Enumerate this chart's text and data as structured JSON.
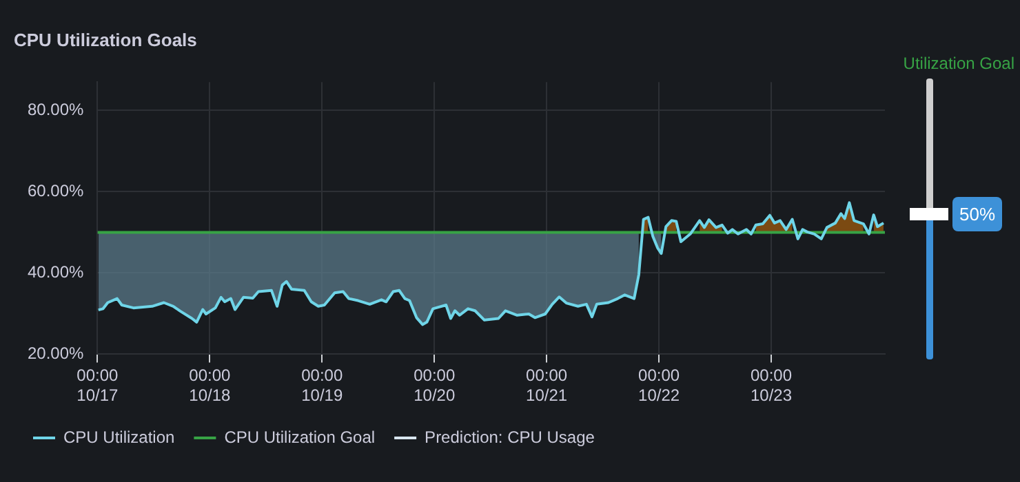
{
  "chart_data": {
    "type": "line",
    "title": "CPU Utilization Goals",
    "annotations": [
      "Utilization Goal",
      "50%"
    ],
    "xlim": [
      "--10-17T00:00",
      "--10-24T00:18"
    ],
    "ylim": [
      20,
      87
    ],
    "xticks": [
      {
        "value": "--10-17T00:00",
        "label": "00:00\n10/17"
      },
      {
        "value": "--10-18T00:00",
        "label": "00:00\n10/18"
      },
      {
        "value": "--10-19T00:00",
        "label": "00:00\n10/19"
      },
      {
        "value": "--10-20T00:00",
        "label": "00:00\n10/20"
      },
      {
        "value": "--10-21T00:00",
        "label": "00:00\n10/21"
      },
      {
        "value": "--10-22T00:00",
        "label": "00:00\n10/22"
      },
      {
        "value": "--10-23T00:00",
        "label": "00:00\n10/23"
      }
    ],
    "yticks": [
      {
        "value": 20,
        "label": "20.00%"
      },
      {
        "value": 40,
        "label": "40.00%"
      },
      {
        "value": 60,
        "label": "60.00%"
      },
      {
        "value": 80,
        "label": "80.00%"
      }
    ],
    "grid": true,
    "legend": "bottom left",
    "marker": "none",
    "series": [
      {
        "name": "CPU Utilization",
        "type": "line",
        "color": "#6fd5e8",
        "line_style": "solid",
        "x": [
          "--10-17T00:12",
          "--10-17T01:12",
          "--10-17T02:12",
          "--10-17T04:12",
          "--10-17T05:12",
          "--10-17T07:42",
          "--10-17T11:42",
          "--10-17T14:12",
          "--10-17T16:12",
          "--10-17T17:42",
          "--10-17T20:12",
          "--10-17T21:12",
          "--10-17T22:30",
          "--10-17T23:12",
          "--10-18T01:12",
          "--10-18T02:24",
          "--10-18T03:12",
          "--10-18T04:30",
          "--10-18T05:24",
          "--10-18T07:12",
          "--10-18T09:12",
          "--10-18T10:24",
          "--10-18T13:12",
          "--10-18T14:24",
          "--10-18T15:30",
          "--10-18T16:24",
          "--10-18T17:30",
          "--10-18T20:12",
          "--10-18T21:42",
          "--10-18T23:12",
          "--10-19T00:30",
          "--10-19T02:42",
          "--10-19T04:30",
          "--10-19T05:42",
          "--10-19T07:42",
          "--10-19T10:12",
          "--10-19T12:42",
          "--10-19T13:42",
          "--10-19T15:12",
          "--10-19T16:30",
          "--10-19T17:42",
          "--10-19T18:42",
          "--10-19T20:12",
          "--10-19T21:30",
          "--10-19T22:24",
          "--10-19T23:42",
          "--10-20T02:30",
          "--10-20T03:30",
          "--10-20T04:24",
          "--10-20T05:24",
          "--10-20T07:12",
          "--10-20T08:42",
          "--10-20T10:42",
          "--10-20T13:42",
          "--10-20T15:12",
          "--10-20T17:42",
          "--10-20T20:12",
          "--10-20T21:30",
          "--10-20T23:42",
          "--10-21T01:12",
          "--10-21T02:42",
          "--10-21T04:12",
          "--10-21T06:42",
          "--10-21T08:30",
          "--10-21T09:42",
          "--10-21T10:42",
          "--10-21T13:12",
          "--10-21T15:12",
          "--10-21T16:42",
          "--10-21T18:42",
          "--10-21T19:42",
          "--10-21T20:42",
          "--10-21T21:42",
          "--10-21T22:42",
          "--10-21T23:42",
          "--10-22T00:30",
          "--10-22T01:30",
          "--10-22T02:42",
          "--10-22T03:42",
          "--10-22T04:42",
          "--10-22T06:42",
          "--10-22T08:42",
          "--10-22T09:42",
          "--10-22T10:42",
          "--10-22T12:12",
          "--10-22T13:30",
          "--10-22T14:42",
          "--10-22T15:42",
          "--10-22T16:54",
          "--10-22T18:42",
          "--10-22T19:42",
          "--10-22T20:42",
          "--10-22T22:12",
          "--10-22T23:42",
          "--10-23T00:42",
          "--10-23T01:54",
          "--10-23T03:12",
          "--10-23T04:30",
          "--10-23T05:42",
          "--10-23T06:42",
          "--10-23T07:42",
          "--10-23T09:12",
          "--10-23T10:42",
          "--10-23T11:54",
          "--10-23T13:42",
          "--10-23T14:54",
          "--10-23T15:42",
          "--10-23T16:42",
          "--10-23T17:42",
          "--10-23T19:42",
          "--10-23T20:54",
          "--10-23T21:54",
          "--10-23T22:42",
          "--10-24T00:00"
        ],
        "values": [
          30.9,
          31.2,
          32.7,
          33.7,
          32.1,
          31.4,
          31.8,
          32.7,
          31.8,
          30.6,
          28.8,
          27.9,
          31,
          29.9,
          31.4,
          34,
          32.9,
          33.7,
          31,
          34,
          33.8,
          35.4,
          35.7,
          31.8,
          37,
          37.9,
          36,
          35.7,
          32.9,
          31.8,
          32.1,
          35.1,
          35.4,
          33.7,
          33.2,
          32.3,
          33.4,
          32.9,
          35.4,
          35.7,
          33.7,
          33.2,
          29,
          27.3,
          27.9,
          31.2,
          32.1,
          28.8,
          30.7,
          29.6,
          31.2,
          30.7,
          28.4,
          28.8,
          30.7,
          29.6,
          29.9,
          29,
          29.9,
          32.3,
          34.1,
          32.6,
          31.8,
          32.3,
          29.2,
          32.3,
          32.7,
          33.7,
          34.6,
          33.7,
          39.6,
          53.2,
          53.7,
          49,
          46.2,
          44.8,
          51.4,
          52.9,
          52.7,
          47.7,
          49.6,
          52.9,
          51.2,
          53.1,
          51.2,
          51.8,
          49.8,
          50.7,
          49.6,
          50.7,
          49.6,
          51.8,
          52.1,
          54.2,
          52.3,
          52.9,
          50.7,
          53.2,
          48.4,
          50.7,
          50.1,
          49.6,
          48.4,
          51.2,
          52.3,
          54.6,
          53.4,
          57.3,
          52.9,
          52.1,
          49.6,
          54.3,
          51.4,
          52.3
        ],
        "lower": [
          30.9,
          31.2,
          32.7,
          33.7,
          32.1,
          31.4,
          31.8,
          32.7,
          31.8,
          30.6,
          28.8,
          27.9,
          31,
          29.9,
          31.4,
          34,
          32.9,
          33.7,
          31,
          34,
          33.8,
          35.4,
          35.7,
          31.8,
          37,
          37.9,
          36,
          35.7,
          32.9,
          31.8,
          32.1,
          35.1,
          35.4,
          33.7,
          33.2,
          32.3,
          33.4,
          32.9,
          35.4,
          35.7,
          33.7,
          33.2,
          29,
          27.3,
          27.9,
          31.2,
          32.1,
          28.8,
          30.7,
          29.6,
          31.2,
          30.7,
          28.4,
          28.8,
          30.7,
          29.6,
          29.9,
          29,
          29.9,
          32.3,
          34.1,
          32.6,
          31.8,
          32.3,
          29.2,
          32.3,
          32.7,
          33.7,
          34.6,
          33.7,
          39.6,
          null,
          null,
          49,
          46.2,
          44.8,
          null,
          null,
          null,
          null,
          null,
          null,
          null,
          null,
          null,
          null,
          null,
          null,
          null,
          null,
          null,
          null,
          null,
          null,
          null,
          null,
          null,
          null,
          null,
          null,
          null,
          null,
          null,
          null,
          null,
          null,
          null,
          null,
          null,
          null,
          null,
          null,
          null,
          null
        ],
        "upper": [
          50,
          50,
          50,
          50,
          50,
          50,
          50,
          50,
          50,
          50,
          50,
          50,
          50,
          50,
          50,
          50,
          50,
          50,
          50,
          50,
          50,
          50,
          50,
          50,
          50,
          50,
          50,
          50,
          50,
          50,
          50,
          50,
          50,
          50,
          50,
          50,
          50,
          50,
          50,
          50,
          50,
          50,
          50,
          50,
          50,
          50,
          50,
          50,
          50,
          50,
          50,
          50,
          50,
          50,
          50,
          50,
          50,
          50,
          50,
          50,
          50,
          50,
          50,
          50,
          50,
          50,
          50,
          50,
          50,
          50,
          50,
          null,
          null,
          50,
          50,
          50,
          null,
          null,
          null,
          null,
          null,
          null,
          null,
          null,
          null,
          null,
          null,
          null,
          null,
          null,
          null,
          null,
          null,
          null,
          null,
          null,
          null,
          null,
          null,
          null,
          null,
          null,
          null,
          null,
          null,
          null,
          null,
          null,
          null,
          null,
          null,
          null,
          null,
          null
        ]
      },
      {
        "name": "CPU Utilization Goal",
        "type": "line",
        "color": "#37a345",
        "line_style": "solid",
        "x": [
          "--10-17T00:00",
          "--10-17T00:12",
          "--10-17T01:12",
          "--10-17T02:12",
          "--10-17T04:12",
          "--10-17T05:12",
          "--10-17T07:42",
          "--10-17T11:42",
          "--10-17T14:12",
          "--10-17T16:12",
          "--10-17T17:42",
          "--10-17T20:12",
          "--10-17T21:12",
          "--10-17T22:30",
          "--10-17T23:12",
          "--10-18T01:12",
          "--10-18T02:24",
          "--10-18T03:12",
          "--10-18T04:30",
          "--10-18T05:24",
          "--10-18T07:12",
          "--10-18T09:12",
          "--10-18T10:24",
          "--10-18T13:12",
          "--10-18T14:24",
          "--10-18T15:30",
          "--10-18T16:24",
          "--10-18T17:30",
          "--10-18T20:12",
          "--10-18T21:42",
          "--10-18T23:12",
          "--10-19T00:30",
          "--10-19T02:42",
          "--10-19T04:30",
          "--10-19T05:42",
          "--10-19T07:42",
          "--10-19T10:12",
          "--10-19T12:42",
          "--10-19T13:42",
          "--10-19T15:12",
          "--10-19T16:30",
          "--10-19T17:42",
          "--10-19T18:42",
          "--10-19T20:12",
          "--10-19T21:30",
          "--10-19T22:24",
          "--10-19T23:42",
          "--10-20T02:30",
          "--10-20T03:30",
          "--10-20T04:24",
          "--10-20T05:24",
          "--10-20T07:12",
          "--10-20T08:42",
          "--10-20T10:42",
          "--10-20T13:42",
          "--10-20T15:12",
          "--10-20T17:42",
          "--10-20T20:12",
          "--10-20T21:30",
          "--10-20T23:42",
          "--10-21T01:12",
          "--10-21T02:42",
          "--10-21T04:12",
          "--10-21T06:42",
          "--10-21T08:30",
          "--10-21T09:42",
          "--10-21T10:42",
          "--10-21T13:12",
          "--10-21T15:12",
          "--10-21T16:42",
          "--10-21T18:42",
          "--10-21T19:42",
          "--10-21T20:42",
          "--10-21T21:42",
          "--10-21T22:42",
          "--10-21T23:42",
          "--10-22T00:30",
          "--10-22T01:30",
          "--10-22T02:42",
          "--10-22T03:42",
          "--10-22T04:42",
          "--10-22T06:42",
          "--10-22T08:42",
          "--10-22T09:42",
          "--10-22T10:42",
          "--10-22T12:12",
          "--10-22T13:30",
          "--10-22T14:42",
          "--10-22T15:42",
          "--10-22T16:54",
          "--10-22T18:42",
          "--10-22T19:42",
          "--10-22T20:42",
          "--10-22T22:12",
          "--10-22T23:42",
          "--10-23T00:42",
          "--10-23T01:54",
          "--10-23T03:12",
          "--10-23T04:30",
          "--10-23T05:42",
          "--10-23T06:42",
          "--10-23T07:42",
          "--10-23T09:12",
          "--10-23T10:42",
          "--10-23T11:54",
          "--10-23T13:42",
          "--10-23T14:54",
          "--10-23T15:42",
          "--10-23T16:42",
          "--10-23T17:42",
          "--10-23T19:42",
          "--10-23T20:54",
          "--10-23T21:54",
          "--10-23T22:42",
          "--10-24T00:00",
          "--10-24T00:18"
        ],
        "values": [
          50,
          50,
          50,
          50,
          50,
          50,
          50,
          50,
          50,
          50,
          50,
          50,
          50,
          50,
          50,
          50,
          50,
          50,
          50,
          50,
          50,
          50,
          50,
          50,
          50,
          50,
          50,
          50,
          50,
          50,
          50,
          50,
          50,
          50,
          50,
          50,
          50,
          50,
          50,
          50,
          50,
          50,
          50,
          50,
          50,
          50,
          50,
          50,
          50,
          50,
          50,
          50,
          50,
          50,
          50,
          50,
          50,
          50,
          50,
          50,
          50,
          50,
          50,
          50,
          50,
          50,
          50,
          50,
          50,
          50,
          50,
          50,
          50,
          50,
          50,
          50,
          50,
          50,
          50,
          50,
          50,
          50,
          50,
          50,
          50,
          50,
          50,
          50,
          50,
          50,
          50,
          50,
          50,
          50,
          50,
          50,
          50,
          50,
          50,
          50,
          50,
          50,
          50,
          50,
          50,
          50,
          50,
          50,
          50,
          50,
          50,
          50,
          50,
          50,
          50,
          50
        ],
        "lower": [
          null,
          null,
          null,
          null,
          null,
          null,
          null,
          null,
          null,
          null,
          null,
          null,
          null,
          null,
          null,
          null,
          null,
          null,
          null,
          null,
          null,
          null,
          null,
          null,
          null,
          null,
          null,
          null,
          null,
          null,
          null,
          null,
          null,
          null,
          null,
          null,
          null,
          null,
          null,
          null,
          null,
          null,
          null,
          null,
          null,
          null,
          null,
          null,
          null,
          null,
          null,
          null,
          null,
          null,
          null,
          null,
          null,
          null,
          null,
          null,
          null,
          null,
          null,
          null,
          null,
          null,
          null,
          null,
          null,
          null,
          null,
          null,
          50,
          50,
          null,
          null,
          null,
          50,
          50,
          50,
          null,
          null,
          50,
          50,
          50,
          50,
          50,
          null,
          null,
          null,
          null,
          null,
          50,
          50,
          50,
          50,
          50,
          50,
          50,
          null,
          null,
          null,
          null,
          null,
          50,
          50,
          50,
          50,
          50,
          50,
          50,
          null,
          50,
          50,
          50,
          null
        ],
        "upper": [
          null,
          null,
          null,
          null,
          null,
          null,
          null,
          null,
          null,
          null,
          null,
          null,
          null,
          null,
          null,
          null,
          null,
          null,
          null,
          null,
          null,
          null,
          null,
          null,
          null,
          null,
          null,
          null,
          null,
          null,
          null,
          null,
          null,
          null,
          null,
          null,
          null,
          null,
          null,
          null,
          null,
          null,
          null,
          null,
          null,
          null,
          null,
          null,
          null,
          null,
          null,
          null,
          null,
          null,
          null,
          null,
          null,
          null,
          null,
          null,
          null,
          null,
          null,
          null,
          null,
          null,
          null,
          null,
          null,
          null,
          null,
          null,
          53.2,
          53.7,
          null,
          null,
          null,
          51.4,
          52.9,
          52.7,
          null,
          null,
          52.9,
          51.2,
          53.1,
          51.2,
          51.8,
          null,
          null,
          null,
          null,
          null,
          51.8,
          52.1,
          54.2,
          52.3,
          52.9,
          50.7,
          53.2,
          null,
          null,
          null,
          null,
          null,
          51.2,
          52.3,
          54.6,
          53.4,
          57.3,
          52.9,
          52.1,
          null,
          54.3,
          51.4,
          52.3,
          null
        ]
      },
      {
        "name": "Prediction: CPU Usage",
        "type": "line",
        "color": "#d8e6f0",
        "line_style": "dotted"
      }
    ]
  }
}
